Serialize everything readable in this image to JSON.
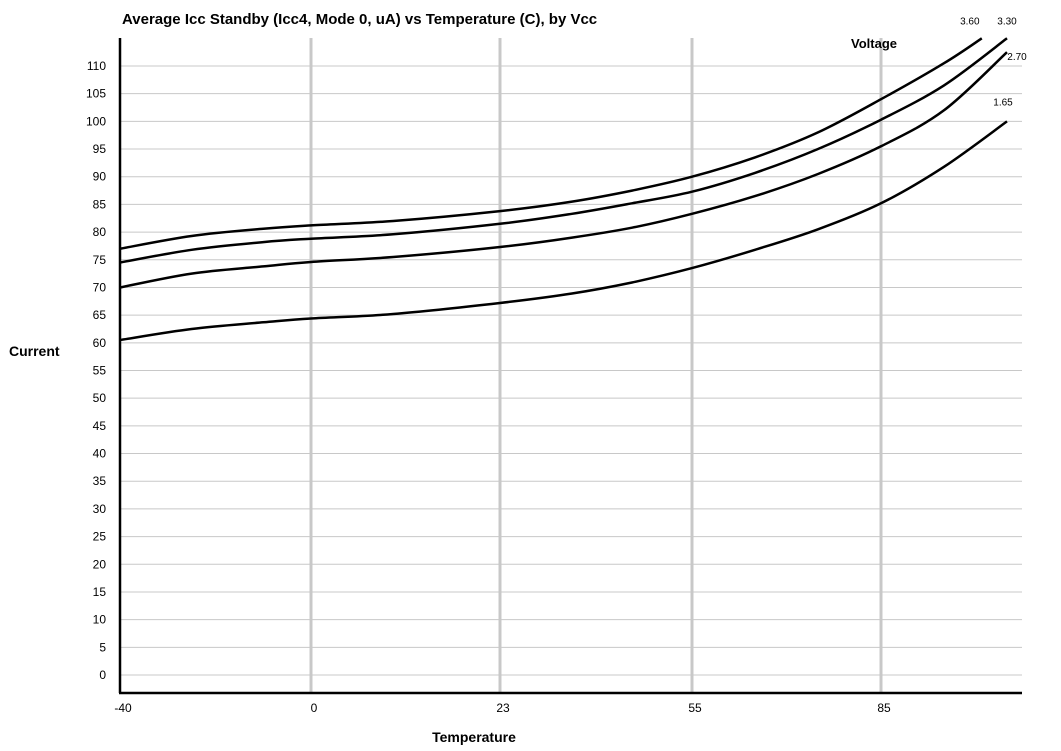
{
  "chart_data": {
    "type": "line",
    "title": "Average Icc Standby (Icc4, Mode 0, uA) vs Temperature (C), by Vcc",
    "xlabel": "Temperature",
    "ylabel": "Current",
    "legend_title": "Voltage",
    "legend_placement": "top-right",
    "grid": true,
    "x_ticks": [
      -40,
      0,
      23,
      55,
      85
    ],
    "xlim": [
      -40,
      105
    ],
    "y_ticks": [
      0,
      5,
      10,
      15,
      20,
      25,
      30,
      35,
      40,
      45,
      50,
      55,
      60,
      65,
      70,
      75,
      80,
      85,
      90,
      95,
      100,
      105,
      110
    ],
    "ylim": [
      -3,
      115
    ],
    "line_color": "#000000",
    "grid_color": "#c8c8c8",
    "series": [
      {
        "name": "3.60",
        "x": [
          -40,
          -25,
          -10,
          0,
          10,
          23,
          35,
          45,
          55,
          65,
          75,
          85,
          95,
          101
        ],
        "y": [
          77,
          79.3,
          80.6,
          81.2,
          82,
          83.8,
          85.5,
          87.5,
          90,
          93.5,
          98,
          104,
          110.5,
          115
        ]
      },
      {
        "name": "3.30",
        "x": [
          -40,
          -25,
          -10,
          0,
          10,
          23,
          35,
          45,
          55,
          65,
          75,
          85,
          95,
          105
        ],
        "y": [
          74.5,
          76.8,
          78.2,
          78.8,
          79.6,
          81.5,
          83.3,
          85.2,
          87.3,
          90.7,
          95,
          100.3,
          106.5,
          115
        ]
      },
      {
        "name": "2.70",
        "x": [
          -40,
          -25,
          -10,
          0,
          10,
          23,
          35,
          45,
          55,
          65,
          75,
          85,
          95,
          105
        ],
        "y": [
          70,
          72.5,
          73.8,
          74.6,
          75.5,
          77.3,
          79,
          80.8,
          83.3,
          86.5,
          90.5,
          95.5,
          102,
          112.5
        ]
      },
      {
        "name": "1.65",
        "x": [
          -40,
          -25,
          -10,
          0,
          10,
          23,
          35,
          45,
          55,
          65,
          75,
          85,
          95,
          105
        ],
        "y": [
          60.5,
          62.5,
          63.7,
          64.4,
          65.2,
          67.2,
          68.9,
          70.9,
          73.5,
          76.8,
          80.5,
          85.2,
          91.8,
          100
        ]
      }
    ]
  }
}
